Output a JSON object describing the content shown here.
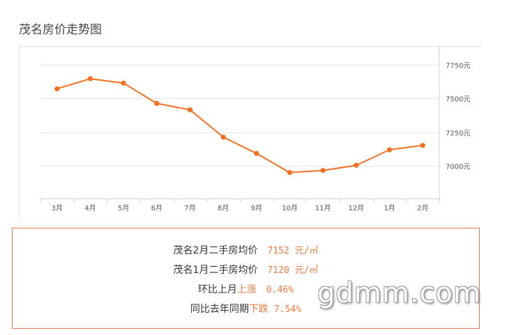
{
  "title": "茂名房价走势图",
  "chart_data": {
    "type": "line",
    "categories": [
      "3月",
      "4月",
      "5月",
      "6月",
      "7月",
      "8月",
      "9月",
      "10月",
      "11月",
      "12月",
      "1月",
      "2月"
    ],
    "values": [
      7570,
      7645,
      7612,
      7462,
      7415,
      7213,
      7093,
      6952,
      6967,
      7005,
      7120,
      7152
    ],
    "y_ticks": [
      7000,
      7250,
      7500,
      7750
    ],
    "y_tick_suffix": "元",
    "ylim": [
      6760,
      7830
    ],
    "grid": true,
    "color": "#f36f21"
  },
  "info": {
    "line1": {
      "label": "茂名2月二手房均价",
      "value": "7152 元/㎡"
    },
    "line2": {
      "label": "茂名1月二手房均价",
      "value": "7120 元/㎡"
    },
    "line3": {
      "label": "环比上月",
      "change": "上涨",
      "value": "0.46%"
    },
    "line4": {
      "label": "同比去年同期",
      "change": "下跌",
      "value": "7.54%"
    }
  },
  "watermark": "gdmm.com"
}
